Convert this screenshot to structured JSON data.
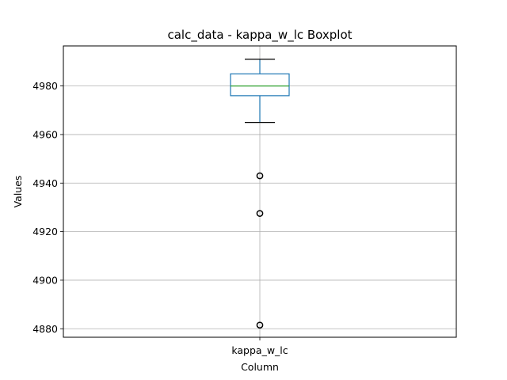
{
  "chart_data": {
    "type": "box",
    "title": "calc_data - kappa_w_lc Boxplot",
    "xlabel": "Column",
    "ylabel": "Values",
    "categories": [
      "kappa_w_lc"
    ],
    "boxes": [
      {
        "name": "kappa_w_lc",
        "whisker_low": 4965,
        "q1": 4976,
        "median": 4980,
        "q3": 4985,
        "whisker_high": 4991,
        "outliers": [
          4943,
          4927.5,
          4881.5
        ]
      }
    ],
    "ylim": [
      4876.5,
      4996.5
    ],
    "yticks": [
      4880,
      4900,
      4920,
      4940,
      4960,
      4980
    ],
    "grid": true,
    "colors": {
      "box": "#1f77b4",
      "median": "#2ca02c",
      "whisker": "#000000",
      "grid": "#b0b0b0",
      "frame": "#000000"
    }
  }
}
